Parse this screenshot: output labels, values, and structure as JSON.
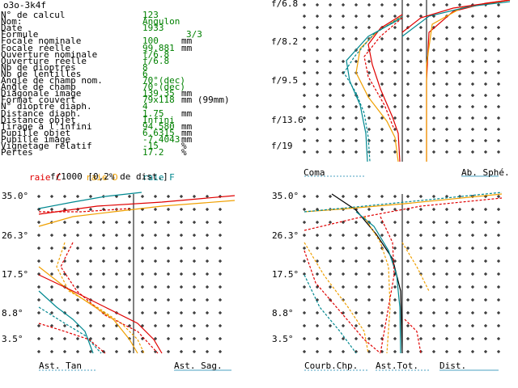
{
  "title": "o3o-3k4f",
  "colors": {
    "red": "#e00000",
    "orange": "#f0a000",
    "teal": "#008890",
    "green": "#008000",
    "black": "#000000"
  },
  "params": [
    {
      "label": "N° de calcul",
      "value": "123",
      "unit": ""
    },
    {
      "label": "Nom:",
      "value": "Angulon",
      "unit": ""
    },
    {
      "label": "Date",
      "value": "1933",
      "unit": ""
    },
    {
      "label": "Formule",
      "value": "3/3",
      "unit": ""
    },
    {
      "label": "Focale nominale",
      "value": "100",
      "unit": "mm"
    },
    {
      "label": "Focale réelle",
      "value": "99.881",
      "unit": "mm"
    },
    {
      "label": "Ouverture nominale",
      "value": "f/6.8",
      "unit": ""
    },
    {
      "label": "Ouverture réelle",
      "value": "f/6.8",
      "unit": ""
    },
    {
      "label": "Nb de dioptres",
      "value": "8",
      "unit": ""
    },
    {
      "label": "Nb de lentilles",
      "value": "6",
      "unit": ""
    },
    {
      "label": "Angle de champ nom.",
      "value": "70°(dec)",
      "unit": ""
    },
    {
      "label": "Angle de champ",
      "value": "70°(dec)",
      "unit": ""
    },
    {
      "label": "Diagonale image",
      "value": "139.35",
      "unit": "mm"
    },
    {
      "label": "Format couvert",
      "value": "79x118",
      "unit": "mm (99mm)"
    },
    {
      "label": "N° dioptre diaph.",
      "value": "4",
      "unit": ""
    },
    {
      "label": "Distance diaph.",
      "value": "1.75",
      "unit": "mm"
    },
    {
      "label": "Distance objet",
      "value": "Infini",
      "unit": ""
    },
    {
      "label": "Tirage à l'infini",
      "value": "94.580",
      "unit": "mm"
    },
    {
      "label": "Pupille objet",
      "value": "6.6315",
      "unit": "mm"
    },
    {
      "label": "Pupille image",
      "value": "-7.4043",
      "unit": "mm"
    },
    {
      "label": "Vignetage relatif",
      "value": "-15",
      "unit": "%"
    },
    {
      "label": "Pertes",
      "value": "17.2",
      "unit": "%"
    }
  ],
  "legend": {
    "raie_c": "raie C",
    "raie_d": "raie D",
    "raie_f": "raie F",
    "scale": "f/1000 [0,2% de dist.]"
  },
  "top_right": {
    "apertures": [
      "f/6.8",
      "f/8.2",
      "f/9.5",
      "f/13.6",
      "f/19"
    ],
    "coma": "Coma",
    "sphe": "Ab. Sphé."
  },
  "bottom_left": {
    "angles": [
      "35.0°",
      "26.3°",
      "17.5°",
      "8.8°",
      "3.5°"
    ],
    "tan": "Ast. Tan",
    "sag": "Ast. Sag."
  },
  "bottom_right": {
    "angles": [
      "35.0°",
      "26.3°",
      "17.5°",
      "8.8°",
      "3.5°"
    ],
    "courb": "Courb.Chp.",
    "ast": "Ast.Tot.",
    "dist": "Dist."
  }
}
